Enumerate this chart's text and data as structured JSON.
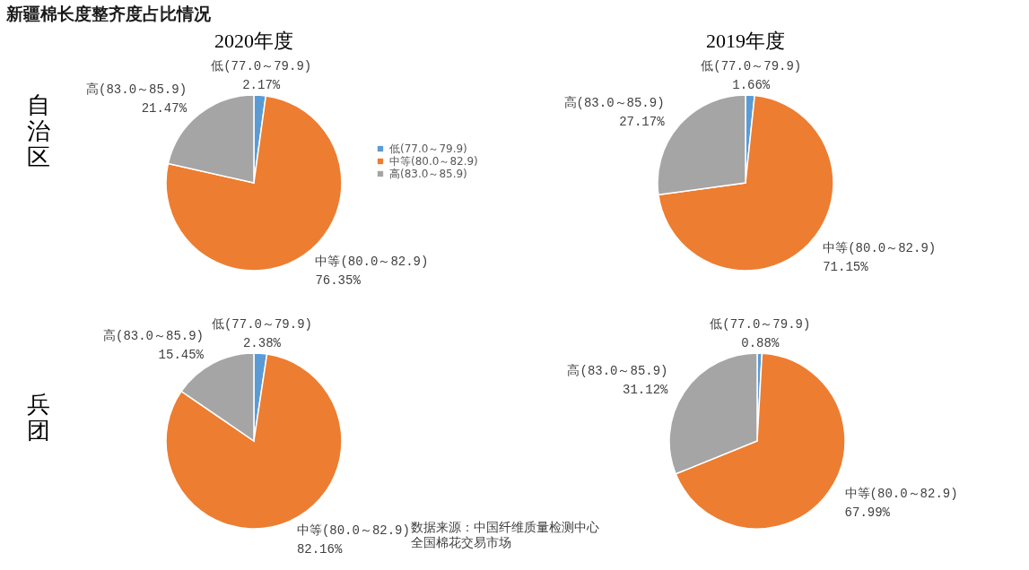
{
  "chart_data": [
    {
      "type": "other",
      "title": "新疆棉长度整齐度占比情况",
      "annotations": [
        "数据来源：中国纤维质量检测中心",
        "全国棉花交易市场"
      ]
    },
    {
      "type": "pie",
      "title": "2020年度",
      "ylabel": "自治区",
      "categories": [
        "低(77.0～79.9)",
        "中等(80.0～82.9)",
        "高(83.0～85.9)"
      ],
      "values": [
        2.17,
        76.35,
        21.47
      ],
      "colors": [
        "#5b9bd5",
        "#ed7d31",
        "#a5a5a5"
      ],
      "value_labels": [
        "2.17%",
        "76.35%",
        "21.47%"
      ],
      "legend": "right"
    },
    {
      "type": "pie",
      "title": "2019年度",
      "categories": [
        "低(77.0～79.9)",
        "中等(80.0～82.9)",
        "高(83.0～85.9)"
      ],
      "values": [
        1.66,
        71.15,
        27.17
      ],
      "colors": [
        "#5b9bd5",
        "#ed7d31",
        "#a5a5a5"
      ],
      "value_labels": [
        "1.66%",
        "71.15%",
        "27.17%"
      ]
    },
    {
      "type": "pie",
      "ylabel": "兵团",
      "categories": [
        "低(77.0～79.9)",
        "中等(80.0～82.9)",
        "高(83.0～85.9)"
      ],
      "values": [
        2.38,
        82.16,
        15.45
      ],
      "colors": [
        "#5b9bd5",
        "#ed7d31",
        "#a5a5a5"
      ],
      "value_labels": [
        "2.38%",
        "82.16%",
        "15.45%"
      ]
    },
    {
      "type": "pie",
      "categories": [
        "低(77.0～79.9)",
        "中等(80.0～82.9)",
        "高(83.0～85.9)"
      ],
      "values": [
        0.88,
        67.99,
        31.12
      ],
      "colors": [
        "#5b9bd5",
        "#ed7d31",
        "#a5a5a5"
      ],
      "value_labels": [
        "0.88%",
        "67.99%",
        "31.12%"
      ]
    }
  ]
}
